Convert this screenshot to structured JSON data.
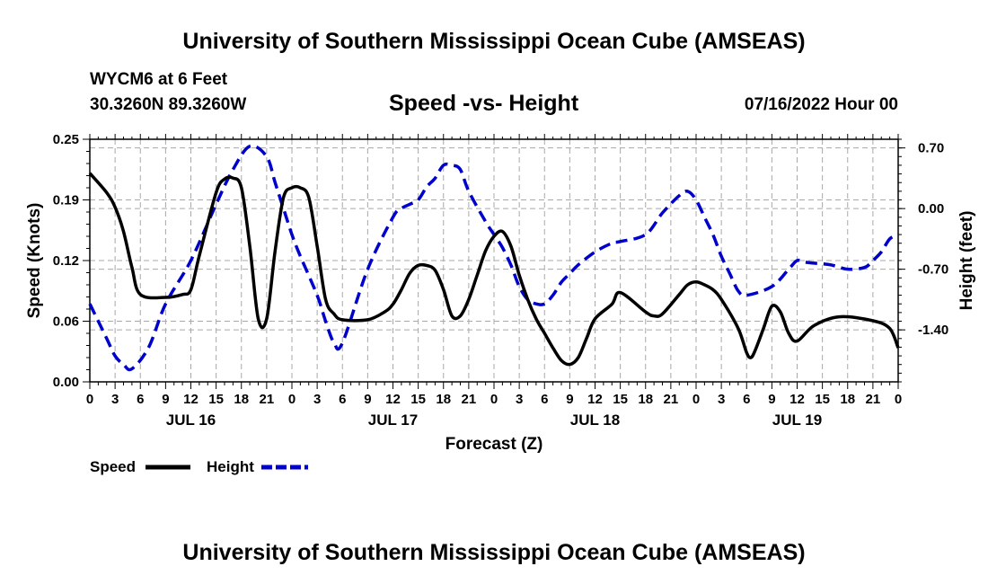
{
  "header": {
    "title": "University of Southern Mississippi Ocean Cube (AMSEAS)",
    "station": "WYCM6 at 6 Feet",
    "coords": "30.3260N  89.3260W",
    "chart_title": "Speed -vs- Height",
    "date": "07/16/2022 Hour 00"
  },
  "footer": {
    "title": "University of Southern Mississippi Ocean Cube (AMSEAS)"
  },
  "legend": {
    "speed_label": "Speed",
    "height_label": "Height",
    "speed_color": "#000000",
    "height_color": "#0000cc"
  },
  "chart_data": {
    "type": "line",
    "title": "Speed -vs- Height",
    "xlabel": "Forecast (Z)",
    "ylabel": "Speed (Knots)",
    "y2label": "Height (feet)",
    "xlim": [
      0,
      96
    ],
    "ylim": [
      0,
      0.25
    ],
    "y2lim": [
      -2.0,
      0.8
    ],
    "yticks": [
      "0.00",
      "0.06",
      "0.12",
      "0.19",
      "0.25"
    ],
    "ytick_values": [
      0,
      0.0625,
      0.125,
      0.1875,
      0.25
    ],
    "y2ticks": [
      "-1.40",
      "-0.70",
      "0.00",
      "0.70"
    ],
    "y2tick_values": [
      -1.4,
      -0.7,
      0.0,
      0.7
    ],
    "xticks": [
      "0",
      "3",
      "6",
      "9",
      "12",
      "15",
      "18",
      "21",
      "0",
      "3",
      "6",
      "9",
      "12",
      "15",
      "18",
      "21",
      "0",
      "3",
      "6",
      "9",
      "12",
      "15",
      "18",
      "21",
      "0",
      "3",
      "6",
      "9",
      "12",
      "15",
      "18",
      "21",
      "0"
    ],
    "day_labels": [
      {
        "label": "JUL 16",
        "hour": 12
      },
      {
        "label": "JUL 17",
        "hour": 36
      },
      {
        "label": "JUL 18",
        "hour": 60
      },
      {
        "label": "JUL 19",
        "hour": 84
      }
    ],
    "series": [
      {
        "name": "Speed",
        "axis": "left",
        "x": [
          0,
          2,
          3,
          4,
          5,
          6,
          9,
          11,
          12,
          13,
          15,
          16,
          17,
          18,
          19,
          20,
          21,
          22,
          23,
          24,
          25,
          26,
          27,
          28,
          29,
          30,
          33,
          35,
          36,
          37,
          38,
          39,
          40,
          41,
          42,
          43,
          44,
          45,
          46,
          47,
          48,
          49,
          50,
          51,
          52,
          53,
          54,
          55,
          56,
          57,
          58,
          59,
          60,
          62,
          63,
          66,
          67,
          68,
          70,
          71,
          72,
          73,
          74,
          75,
          77,
          78,
          78.5,
          79,
          80,
          81,
          82,
          83,
          84,
          86,
          89,
          93,
          95,
          96
        ],
        "values": [
          0.215,
          0.195,
          0.18,
          0.155,
          0.118,
          0.09,
          0.087,
          0.09,
          0.095,
          0.13,
          0.195,
          0.209,
          0.21,
          0.2,
          0.14,
          0.065,
          0.065,
          0.135,
          0.19,
          0.2,
          0.2,
          0.19,
          0.14,
          0.085,
          0.07,
          0.064,
          0.064,
          0.072,
          0.08,
          0.095,
          0.112,
          0.12,
          0.12,
          0.115,
          0.095,
          0.068,
          0.068,
          0.085,
          0.11,
          0.135,
          0.15,
          0.155,
          0.14,
          0.11,
          0.085,
          0.065,
          0.05,
          0.035,
          0.022,
          0.018,
          0.025,
          0.045,
          0.065,
          0.08,
          0.092,
          0.072,
          0.068,
          0.07,
          0.09,
          0.1,
          0.103,
          0.1,
          0.095,
          0.085,
          0.055,
          0.03,
          0.025,
          0.032,
          0.055,
          0.078,
          0.072,
          0.05,
          0.042,
          0.058,
          0.067,
          0.063,
          0.055,
          0.035
        ]
      },
      {
        "name": "Height",
        "axis": "right",
        "x": [
          0,
          2,
          3,
          4,
          5,
          7,
          9,
          12,
          15,
          17,
          19,
          21,
          22,
          23,
          24,
          25,
          27,
          28,
          29,
          30,
          33,
          36,
          37,
          38,
          39,
          40,
          41,
          42,
          43,
          44,
          45,
          47,
          48,
          49,
          50,
          51,
          52,
          53,
          54,
          55,
          56,
          57,
          58,
          60,
          62,
          63,
          66,
          68,
          70,
          71,
          72,
          73,
          74,
          75,
          76,
          77,
          78,
          81,
          83,
          84,
          85,
          86,
          88,
          90,
          92,
          93,
          94,
          95,
          96
        ],
        "values": [
          -1.1,
          -1.5,
          -1.7,
          -1.8,
          -1.85,
          -1.6,
          -1.1,
          -0.6,
          0.05,
          0.45,
          0.72,
          0.6,
          0.3,
          0,
          -0.3,
          -0.55,
          -1.0,
          -1.3,
          -1.55,
          -1.55,
          -0.7,
          -0.1,
          0.0,
          0.05,
          0.1,
          0.25,
          0.35,
          0.5,
          0.5,
          0.45,
          0.2,
          -0.15,
          -0.3,
          -0.45,
          -0.65,
          -0.9,
          -1.05,
          -1.1,
          -1.1,
          -1.0,
          -0.85,
          -0.75,
          -0.65,
          -0.5,
          -0.4,
          -0.38,
          -0.3,
          -0.05,
          0.15,
          0.2,
          0.1,
          -0.1,
          -0.3,
          -0.55,
          -0.75,
          -0.95,
          -1.0,
          -0.9,
          -0.7,
          -0.6,
          -0.62,
          -0.63,
          -0.65,
          -0.7,
          -0.68,
          -0.6,
          -0.5,
          -0.35,
          -0.3
        ]
      }
    ]
  }
}
